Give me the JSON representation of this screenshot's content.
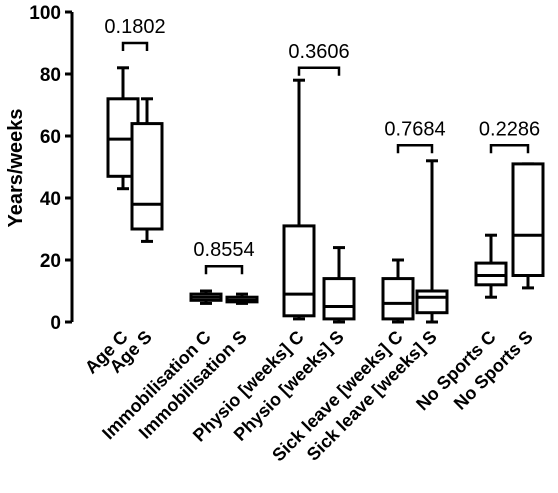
{
  "chart_data": {
    "type": "box",
    "ylabel": "Years/weeks",
    "ylim": [
      0,
      100
    ],
    "yticks": [
      0,
      20,
      40,
      60,
      80,
      100
    ],
    "categories": [
      "Age C",
      "Age S",
      "Immobilisation C",
      "Immobilisation S",
      "Physio [weeks] C",
      "Physio [weeks] S",
      "Sick leave [weeks] C",
      "Sick leave [weeks] S",
      "No Sports C",
      "No Sports S"
    ],
    "boxes": [
      {
        "label": "Age C",
        "min": 43,
        "q1": 47,
        "median": 59,
        "q3": 72,
        "max": 82
      },
      {
        "label": "Age S",
        "min": 26,
        "q1": 30,
        "median": 38,
        "q3": 64,
        "max": 72
      },
      {
        "label": "Immobilisation C",
        "min": 6,
        "q1": 7,
        "median": 8,
        "q3": 9,
        "max": 10
      },
      {
        "label": "Immobilisation S",
        "min": 6,
        "q1": 6.5,
        "median": 7,
        "q3": 8,
        "max": 9
      },
      {
        "label": "Physio [weeks] C",
        "min": 1,
        "q1": 2,
        "median": 9,
        "q3": 31,
        "max": 78
      },
      {
        "label": "Physio [weeks] S",
        "min": 0,
        "q1": 1,
        "median": 5,
        "q3": 14,
        "max": 24
      },
      {
        "label": "Sick leave [weeks] C",
        "min": 0,
        "q1": 1,
        "median": 6,
        "q3": 14,
        "max": 20
      },
      {
        "label": "Sick leave [weeks] S",
        "min": 0,
        "q1": 3,
        "median": 8,
        "q3": 10,
        "max": 52
      },
      {
        "label": "No Sports C",
        "min": 8,
        "q1": 12,
        "median": 15,
        "q3": 19,
        "max": 28
      },
      {
        "label": "No Sports S",
        "min": 11,
        "q1": 15,
        "median": 28,
        "q3": 51,
        "max": 51
      }
    ],
    "comparisons": [
      {
        "pair": [
          0,
          1
        ],
        "p": "0.1802"
      },
      {
        "pair": [
          2,
          3
        ],
        "p": "0.8554"
      },
      {
        "pair": [
          4,
          5
        ],
        "p": "0.3606"
      },
      {
        "pair": [
          6,
          7
        ],
        "p": "0.7684"
      },
      {
        "pair": [
          8,
          9
        ],
        "p": "0.2286"
      }
    ],
    "comparison_heights": [
      90,
      18,
      82,
      57,
      57
    ],
    "colors": {
      "stroke": "#000000",
      "fill": "#ffffff"
    }
  }
}
